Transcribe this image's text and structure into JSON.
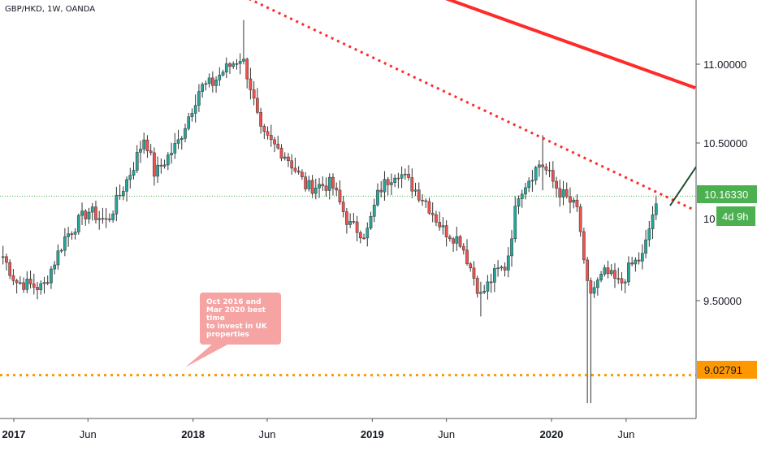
{
  "header": {
    "symbol": "GBP/HKD, 1W, OANDA"
  },
  "colors": {
    "up": "#26a69a",
    "down": "#ef5350",
    "wick": "#333333",
    "trendline": "#ff2b2b",
    "support": "#ff9800",
    "arrow": "#1b4d2b",
    "price_tag": "#4caf50",
    "support_tag": "#ff9800"
  },
  "annotation": {
    "text": "Oct 2016 and\nMar 2020 best\ntime\nto invest in UK\nproperties"
  },
  "chart_data": {
    "type": "candlestick",
    "title": "GBP/HKD, 1W, OANDA",
    "y_axis": {
      "ticks": [
        "11.00000",
        "10.50000",
        "9.50000"
      ],
      "range": [
        8.78,
        11.48
      ]
    },
    "x_axis": {
      "ticks": [
        "2017",
        "Jun",
        "2018",
        "Jun",
        "2019",
        "Jun",
        "2020",
        "Jun"
      ]
    },
    "last_price": "10.16330",
    "countdown": "4d 9h",
    "partial_price_label": "10",
    "support_level": {
      "value": "9.02791",
      "style": "dotted"
    },
    "trendlines": [
      {
        "name": "dotted resistance",
        "style": "dotted",
        "from": [
          "2018-04-01",
          11.45
        ],
        "to": [
          "2020-10-01",
          10.1
        ]
      },
      {
        "name": "solid resistance",
        "style": "solid",
        "from": [
          "2019-05-01",
          11.45
        ],
        "to": [
          "2020-10-20",
          10.85
        ]
      }
    ],
    "waypoints": [
      [
        "2016-12-10",
        9.78
      ],
      [
        "2017-01-05",
        9.62
      ],
      [
        "2017-03-01",
        9.58
      ],
      [
        "2017-04-15",
        9.9
      ],
      [
        "2017-06-01",
        10.07
      ],
      [
        "2017-07-10",
        10.0
      ],
      [
        "2017-09-01",
        10.35
      ],
      [
        "2017-09-25",
        10.55
      ],
      [
        "2017-10-15",
        10.3
      ],
      [
        "2017-12-01",
        10.5
      ],
      [
        "2018-01-15",
        10.85
      ],
      [
        "2018-02-10",
        10.88
      ],
      [
        "2018-03-01",
        10.95
      ],
      [
        "2018-04-10",
        11.05
      ],
      [
        "2018-04-25",
        10.9
      ],
      [
        "2018-05-20",
        10.55
      ],
      [
        "2018-07-10",
        10.42
      ],
      [
        "2018-08-20",
        10.22
      ],
      [
        "2018-10-10",
        10.24
      ],
      [
        "2018-11-15",
        9.98
      ],
      [
        "2018-12-20",
        9.92
      ],
      [
        "2019-01-15",
        10.2
      ],
      [
        "2019-02-20",
        10.33
      ],
      [
        "2019-03-25",
        10.22
      ],
      [
        "2019-04-20",
        10.13
      ],
      [
        "2019-05-25",
        9.95
      ],
      [
        "2019-06-30",
        9.88
      ],
      [
        "2019-08-10",
        9.53
      ],
      [
        "2019-09-10",
        9.68
      ],
      [
        "2019-10-01",
        9.72
      ],
      [
        "2019-10-25",
        10.18
      ],
      [
        "2019-12-10",
        10.38
      ],
      [
        "2020-01-15",
        10.2
      ],
      [
        "2020-02-25",
        10.07
      ],
      [
        "2020-03-10",
        9.62
      ],
      [
        "2020-03-20",
        9.55
      ],
      [
        "2020-04-20",
        9.68
      ],
      [
        "2020-05-20",
        9.6
      ],
      [
        "2020-06-10",
        9.72
      ],
      [
        "2020-07-05",
        9.78
      ],
      [
        "2020-07-25",
        10.05
      ],
      [
        "2020-08-15",
        10.14
      ],
      [
        "2020-09-01",
        10.16
      ]
    ],
    "events": [
      [
        "2018-04-15",
        11.28,
        11.0
      ],
      [
        "2019-12-15",
        10.55,
        10.2
      ],
      [
        "2020-03-18",
        9.55,
        8.85
      ],
      [
        "2019-08-10",
        9.62,
        9.4
      ]
    ]
  }
}
